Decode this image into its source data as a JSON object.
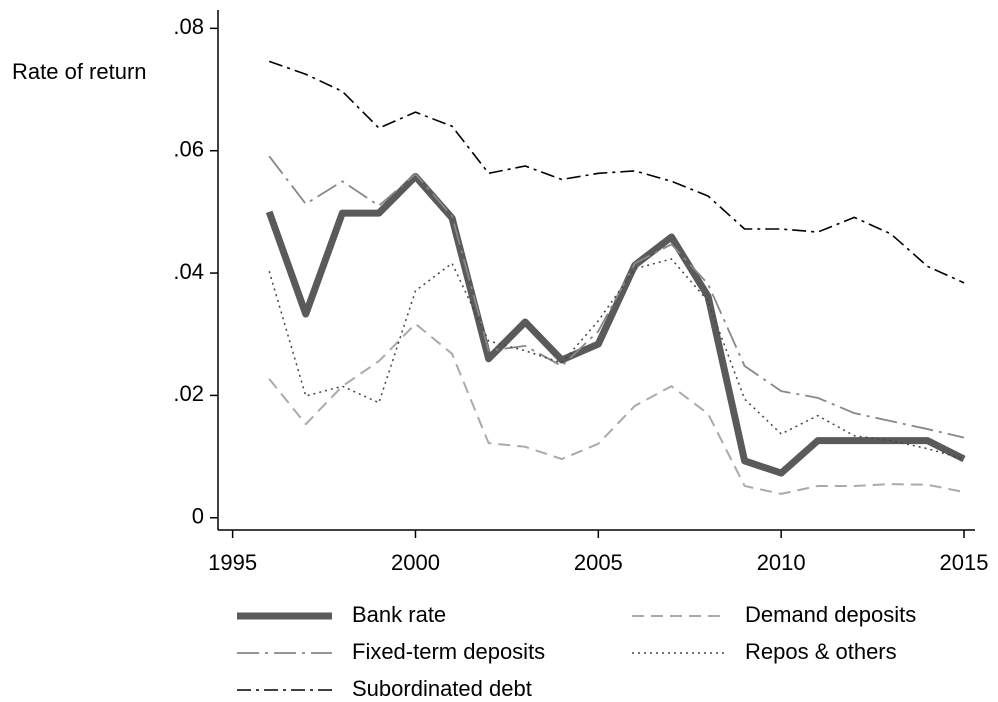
{
  "chart_data": {
    "type": "line",
    "ylabel": "Rate of return",
    "x": [
      1996,
      1997,
      1998,
      1999,
      2000,
      2001,
      2002,
      2003,
      2004,
      2005,
      2006,
      2007,
      2008,
      2009,
      2010,
      2011,
      2012,
      2013,
      2014,
      2015
    ],
    "xlim": [
      1994.6,
      2015.3
    ],
    "xticks": [
      1995,
      2000,
      2005,
      2010,
      2015
    ],
    "ylim": [
      -0.002,
      0.083
    ],
    "yticks": [
      0,
      {
        "value": 0.02,
        "label": ".02"
      },
      {
        "value": 0.04,
        "label": ".04"
      },
      {
        "value": 0.06,
        "label": ".06"
      },
      {
        "value": 0.08,
        "label": ".08"
      }
    ],
    "series": [
      {
        "name": "Bank rate",
        "color": "#5a5a5a",
        "width": 7,
        "dash": "none",
        "values": [
          0.05,
          0.0333,
          0.0498,
          0.0498,
          0.0558,
          0.049,
          0.026,
          0.032,
          0.0258,
          0.0284,
          0.0413,
          0.0459,
          0.0362,
          0.0093,
          0.0073,
          0.0126,
          0.0126,
          0.0126,
          0.0126,
          0.0096
        ]
      },
      {
        "name": "Demand deposits",
        "color": "#aaaaaa",
        "width": 2,
        "dash": "12,7",
        "values": [
          0.0227,
          0.0153,
          0.0215,
          0.0256,
          0.0317,
          0.0268,
          0.0122,
          0.0116,
          0.0096,
          0.0121,
          0.0183,
          0.0215,
          0.017,
          0.0052,
          0.0039,
          0.0052,
          0.0052,
          0.0055,
          0.0054,
          0.0042
        ]
      },
      {
        "name": "Fixed-term deposits",
        "color": "#888888",
        "width": 1.8,
        "dash": "22,6,3,6",
        "values": [
          0.0591,
          0.0513,
          0.055,
          0.051,
          0.0562,
          0.0493,
          0.0273,
          0.0281,
          0.0248,
          0.0305,
          0.0416,
          0.0447,
          0.0382,
          0.0248,
          0.0207,
          0.0196,
          0.0171,
          0.0158,
          0.0145,
          0.0131
        ]
      },
      {
        "name": "Repos & others",
        "color": "#444444",
        "width": 1.5,
        "dash": "2,4",
        "values": [
          0.0403,
          0.0199,
          0.0215,
          0.0188,
          0.0371,
          0.0416,
          0.0289,
          0.0273,
          0.0253,
          0.0322,
          0.0407,
          0.0423,
          0.0354,
          0.0194,
          0.0137,
          0.0167,
          0.0134,
          0.0126,
          0.0113,
          0.0096
        ]
      },
      {
        "name": "Subordinated debt",
        "color": "#000000",
        "width": 1.6,
        "dash": "14,5,3,5",
        "values": [
          0.0746,
          0.0725,
          0.0697,
          0.0637,
          0.0663,
          0.064,
          0.0563,
          0.0575,
          0.0553,
          0.0563,
          0.0567,
          0.055,
          0.0526,
          0.0472,
          0.0472,
          0.0467,
          0.0491,
          0.0464,
          0.0411,
          0.0384
        ]
      }
    ]
  }
}
